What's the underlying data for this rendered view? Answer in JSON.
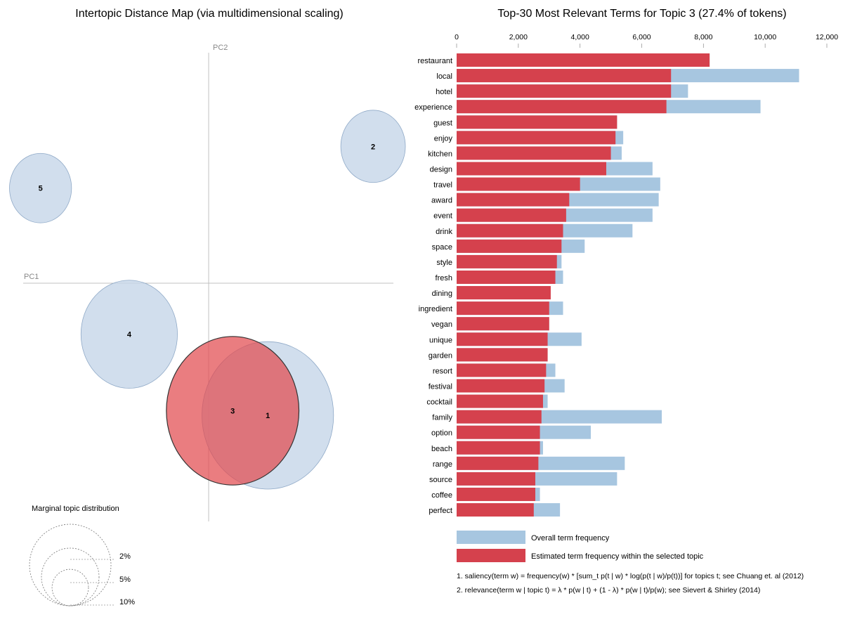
{
  "colors": {
    "topic_fill": "#c6d6e8",
    "topic_stroke": "#8fa9c7",
    "selected_fill": "#e24b4f",
    "overall_bar": "#a7c6e0",
    "estimated_bar": "#d5414d",
    "axis_line": "#c0c0c0"
  },
  "chart_data": [
    {
      "type": "scatter",
      "title": "Intertopic Distance Map (via multidimensional scaling)",
      "xlabel": "PC1",
      "ylabel": "PC2",
      "xlim": [
        -1,
        1
      ],
      "ylim": [
        -1,
        1
      ],
      "topics": [
        {
          "label": "1",
          "pc1": 0.32,
          "pc2": -0.57,
          "size_pct": 27.0,
          "selected": false
        },
        {
          "label": "2",
          "pc1": 0.89,
          "pc2": 0.59,
          "size_pct": 6.5,
          "selected": false
        },
        {
          "label": "3",
          "pc1": 0.13,
          "pc2": -0.55,
          "size_pct": 27.4,
          "selected": true
        },
        {
          "label": "4",
          "pc1": -0.43,
          "pc2": -0.22,
          "size_pct": 14.5,
          "selected": false
        },
        {
          "label": "5",
          "pc1": -0.91,
          "pc2": 0.41,
          "size_pct": 6.0,
          "selected": false
        }
      ],
      "marginal": {
        "title": "Marginal topic distribution",
        "circles": [
          {
            "label": "2%",
            "pct": 2
          },
          {
            "label": "5%",
            "pct": 5
          },
          {
            "label": "10%",
            "pct": 10
          }
        ]
      }
    },
    {
      "type": "bar",
      "orientation": "horizontal",
      "title": "Top-30 Most Relevant Terms for Topic 3 (27.4% of tokens)",
      "xlim": [
        0,
        12000
      ],
      "ticks": [
        0,
        2000,
        4000,
        6000,
        8000,
        10000,
        12000
      ],
      "tick_labels": [
        "0",
        "2,000",
        "4,000",
        "6,000",
        "8,000",
        "10,000",
        "12,000"
      ],
      "categories": [
        "restaurant",
        "local",
        "hotel",
        "experience",
        "guest",
        "enjoy",
        "kitchen",
        "design",
        "travel",
        "award",
        "event",
        "drink",
        "space",
        "style",
        "fresh",
        "dining",
        "ingredient",
        "vegan",
        "unique",
        "garden",
        "resort",
        "festival",
        "cocktail",
        "family",
        "option",
        "beach",
        "range",
        "source",
        "coffee",
        "perfect"
      ],
      "series": [
        {
          "name": "Overall term frequency",
          "values": [
            8200,
            11100,
            7500,
            9850,
            5200,
            5400,
            5350,
            6350,
            6600,
            6550,
            6350,
            5700,
            4150,
            3400,
            3450,
            3000,
            3450,
            3000,
            4050,
            2950,
            3200,
            3500,
            2950,
            6650,
            4350,
            2800,
            5450,
            5200,
            2700,
            3350
          ]
        },
        {
          "name": "Estimated term frequency within the selected topic",
          "values": [
            8200,
            6950,
            6950,
            6800,
            5200,
            5150,
            5000,
            4850,
            4000,
            3650,
            3550,
            3450,
            3400,
            3250,
            3200,
            3050,
            3000,
            3000,
            2950,
            2950,
            2900,
            2850,
            2800,
            2750,
            2700,
            2700,
            2650,
            2550,
            2550,
            2500
          ]
        }
      ],
      "footnotes": [
        "1. saliency(term w) = frequency(w) * [sum_t p(t | w) * log(p(t | w)/p(t))] for topics t; see Chuang et. al (2012)",
        "2. relevance(term w | topic t) = λ * p(w | t) + (1 - λ) * p(w | t)/p(w); see Sievert & Shirley (2014)"
      ]
    }
  ]
}
